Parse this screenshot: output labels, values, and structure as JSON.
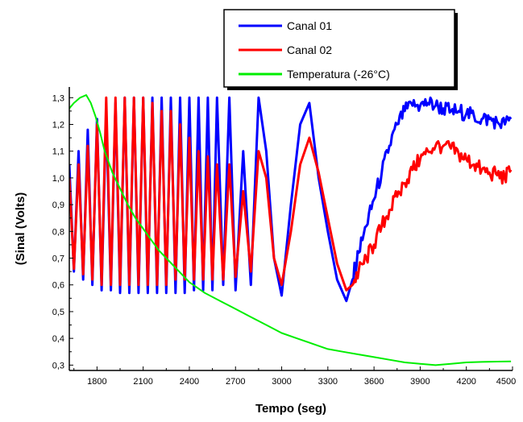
{
  "chart_data": {
    "type": "line",
    "title": "",
    "xlabel": "Tempo (seg)",
    "ylabel": "(Sinal (Volts)",
    "xlim": [
      1620,
      4500
    ],
    "ylim": [
      0.28,
      1.34
    ],
    "x_ticks": [
      1800,
      2100,
      2400,
      2700,
      3000,
      3300,
      3600,
      3900,
      4200,
      4500
    ],
    "x_tick_labels": [
      "1800",
      "2100",
      "2400",
      "2700",
      "3000",
      "3300",
      "3600",
      "3900",
      "4200",
      "4500"
    ],
    "y_ticks": [
      0.3,
      0.4,
      0.5,
      0.6,
      0.7,
      0.8,
      0.9,
      1.0,
      1.1,
      1.2,
      1.3
    ],
    "y_tick_labels": [
      "0,3",
      "0,4",
      "0,5",
      "0,6",
      "0,7",
      "0,8",
      "0,9",
      "1,0",
      "1,1",
      "1,2",
      "1,3"
    ],
    "legend_position": "top-right",
    "series": [
      {
        "name": "Canal 01",
        "color": "#0000ff",
        "x": [
          1620,
          1650,
          1680,
          1710,
          1740,
          1770,
          1800,
          1830,
          1860,
          1890,
          1920,
          1950,
          1980,
          2010,
          2040,
          2070,
          2100,
          2130,
          2160,
          2190,
          2220,
          2250,
          2280,
          2310,
          2340,
          2370,
          2400,
          2430,
          2460,
          2490,
          2520,
          2550,
          2580,
          2620,
          2660,
          2700,
          2750,
          2800,
          2850,
          2900,
          2950,
          3000,
          3060,
          3120,
          3180,
          3240,
          3300,
          3360,
          3420,
          3460,
          3500,
          3550,
          3600,
          3650,
          3700,
          3750,
          3800,
          3850,
          3900,
          3950,
          4000,
          4050,
          4100,
          4150,
          4200,
          4250,
          4300,
          4350,
          4400,
          4450,
          4490
        ],
        "y": [
          1.05,
          0.65,
          1.1,
          0.62,
          1.18,
          0.6,
          1.22,
          0.58,
          1.25,
          0.58,
          1.28,
          0.57,
          1.3,
          0.57,
          1.3,
          0.57,
          1.3,
          0.57,
          1.3,
          0.57,
          1.3,
          0.57,
          1.3,
          0.57,
          1.3,
          0.57,
          1.3,
          0.58,
          1.3,
          0.58,
          1.3,
          0.58,
          1.3,
          0.6,
          1.3,
          0.58,
          1.1,
          0.6,
          1.3,
          1.1,
          0.7,
          0.56,
          0.9,
          1.2,
          1.28,
          1.0,
          0.8,
          0.62,
          0.54,
          0.62,
          0.72,
          0.82,
          0.92,
          1.02,
          1.12,
          1.2,
          1.25,
          1.27,
          1.27,
          1.28,
          1.27,
          1.26,
          1.25,
          1.25,
          1.24,
          1.23,
          1.22,
          1.22,
          1.21,
          1.2,
          1.22
        ]
      },
      {
        "name": "Canal 02",
        "color": "#ff0000",
        "x": [
          1620,
          1650,
          1680,
          1710,
          1740,
          1770,
          1800,
          1830,
          1860,
          1890,
          1920,
          1950,
          1980,
          2010,
          2040,
          2070,
          2100,
          2130,
          2160,
          2190,
          2220,
          2250,
          2280,
          2310,
          2340,
          2370,
          2400,
          2430,
          2460,
          2490,
          2520,
          2550,
          2580,
          2620,
          2660,
          2700,
          2750,
          2800,
          2850,
          2900,
          2950,
          3000,
          3060,
          3120,
          3180,
          3240,
          3300,
          3360,
          3420,
          3460,
          3500,
          3550,
          3600,
          3650,
          3700,
          3750,
          3800,
          3850,
          3900,
          3950,
          4000,
          4050,
          4100,
          4150,
          4200,
          4250,
          4300,
          4350,
          4400,
          4450,
          4490
        ],
        "y": [
          1.0,
          0.66,
          1.05,
          0.64,
          1.12,
          0.62,
          1.2,
          0.6,
          1.3,
          0.6,
          1.3,
          0.6,
          1.3,
          0.6,
          1.3,
          0.6,
          1.3,
          0.6,
          1.28,
          0.6,
          1.25,
          0.6,
          1.25,
          0.62,
          1.2,
          0.62,
          1.15,
          0.62,
          1.1,
          0.62,
          1.08,
          0.62,
          1.05,
          0.62,
          1.05,
          0.63,
          0.95,
          0.65,
          1.1,
          1.0,
          0.7,
          0.6,
          0.8,
          1.05,
          1.15,
          1.02,
          0.85,
          0.68,
          0.58,
          0.6,
          0.65,
          0.7,
          0.75,
          0.82,
          0.88,
          0.93,
          0.98,
          1.03,
          1.07,
          1.1,
          1.12,
          1.12,
          1.11,
          1.09,
          1.07,
          1.05,
          1.03,
          1.02,
          1.01,
          1.0,
          1.03
        ]
      },
      {
        "name": "Temperatura (-26°C)",
        "color": "#00ee00",
        "x": [
          1620,
          1650,
          1690,
          1730,
          1760,
          1790,
          1820,
          1850,
          1900,
          1950,
          2000,
          2050,
          2100,
          2150,
          2200,
          2250,
          2300,
          2400,
          2500,
          2600,
          2700,
          2800,
          2900,
          3000,
          3100,
          3200,
          3300,
          3400,
          3500,
          3600,
          3700,
          3800,
          3900,
          4000,
          4100,
          4200,
          4300,
          4400,
          4490
        ],
        "y": [
          1.26,
          1.28,
          1.3,
          1.31,
          1.28,
          1.23,
          1.17,
          1.1,
          1.02,
          0.96,
          0.9,
          0.85,
          0.81,
          0.77,
          0.73,
          0.7,
          0.67,
          0.61,
          0.57,
          0.54,
          0.51,
          0.48,
          0.45,
          0.42,
          0.4,
          0.38,
          0.36,
          0.35,
          0.34,
          0.33,
          0.32,
          0.31,
          0.305,
          0.3,
          0.305,
          0.31,
          0.312,
          0.313,
          0.314
        ]
      }
    ]
  }
}
